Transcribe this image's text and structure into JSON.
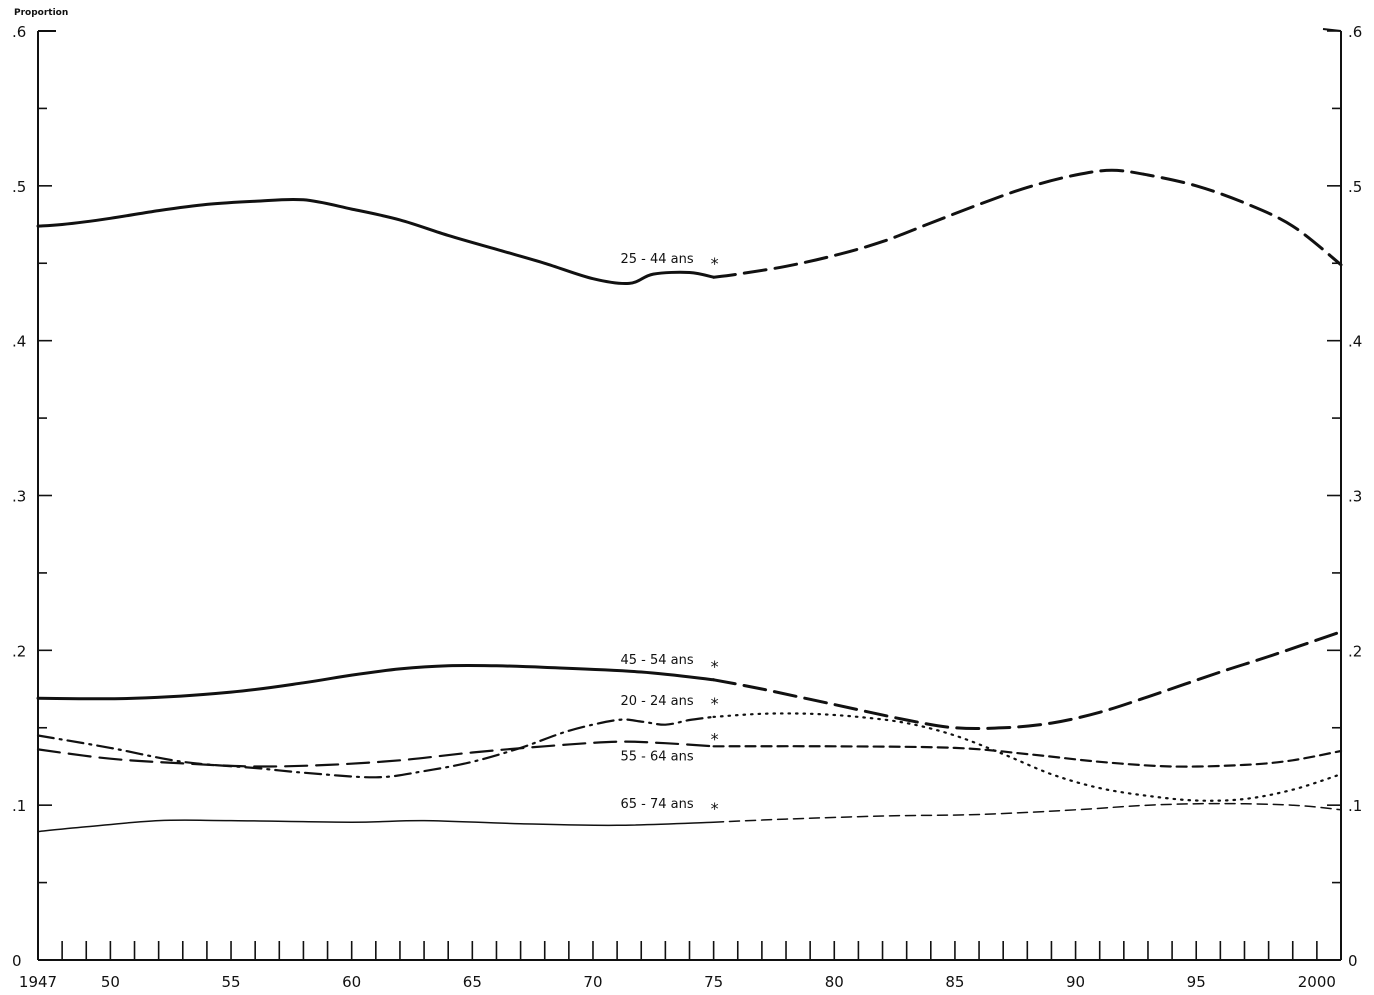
{
  "chart_data": {
    "type": "line",
    "ylabel": "Proportion",
    "xlim": [
      1947,
      2001
    ],
    "ylim": [
      0,
      0.6
    ],
    "x_ticks": [
      1947,
      1950,
      1955,
      1960,
      1965,
      1970,
      1975,
      1980,
      1985,
      1990,
      1995,
      2000
    ],
    "x_tick_labels": [
      "1947",
      "50",
      "55",
      "60",
      "65",
      "70",
      "75",
      "80",
      "85",
      "90",
      "95",
      "2000"
    ],
    "y_ticks": [
      0,
      0.1,
      0.2,
      0.3,
      0.4,
      0.5,
      0.6
    ],
    "y_tick_labels": [
      "0",
      ".1",
      ".2",
      ".3",
      ".4",
      ".5",
      ".6"
    ],
    "projection_start": 1975,
    "projection_marker": "*",
    "series": [
      {
        "name": "25 - 44 ans",
        "line_weight": "heavy",
        "projection_style": "long-dash",
        "observed": [
          [
            1947,
            0.474
          ],
          [
            1948,
            0.475
          ],
          [
            1950,
            0.479
          ],
          [
            1952,
            0.484
          ],
          [
            1954,
            0.488
          ],
          [
            1956,
            0.49
          ],
          [
            1958,
            0.491
          ],
          [
            1960,
            0.485
          ],
          [
            1962,
            0.478
          ],
          [
            1964,
            0.468
          ],
          [
            1966,
            0.459
          ],
          [
            1968,
            0.45
          ],
          [
            1970,
            0.44
          ],
          [
            1971.5,
            0.437
          ],
          [
            1972.5,
            0.443
          ],
          [
            1974,
            0.444
          ],
          [
            1975,
            0.441
          ]
        ],
        "projected": [
          [
            1975,
            0.441
          ],
          [
            1976,
            0.443
          ],
          [
            1978,
            0.448
          ],
          [
            1980,
            0.455
          ],
          [
            1982,
            0.464
          ],
          [
            1984,
            0.476
          ],
          [
            1986,
            0.488
          ],
          [
            1988,
            0.499
          ],
          [
            1990,
            0.507
          ],
          [
            1991.5,
            0.51
          ],
          [
            1993,
            0.507
          ],
          [
            1995,
            0.5
          ],
          [
            1997,
            0.489
          ],
          [
            1999,
            0.474
          ],
          [
            2001,
            0.449
          ]
        ]
      },
      {
        "name": "45 - 54 ans",
        "line_weight": "heavy",
        "projection_style": "long-dash",
        "observed": [
          [
            1947,
            0.169
          ],
          [
            1951,
            0.169
          ],
          [
            1955,
            0.173
          ],
          [
            1958,
            0.179
          ],
          [
            1960,
            0.184
          ],
          [
            1962,
            0.188
          ],
          [
            1964,
            0.19
          ],
          [
            1966,
            0.19
          ],
          [
            1968,
            0.189
          ],
          [
            1972,
            0.186
          ],
          [
            1975,
            0.181
          ]
        ],
        "projected": [
          [
            1975,
            0.181
          ],
          [
            1977,
            0.175
          ],
          [
            1980,
            0.165
          ],
          [
            1983,
            0.155
          ],
          [
            1985,
            0.15
          ],
          [
            1987,
            0.15
          ],
          [
            1989,
            0.153
          ],
          [
            1991,
            0.16
          ],
          [
            1993,
            0.17
          ],
          [
            1996,
            0.186
          ],
          [
            1998,
            0.196
          ],
          [
            2001,
            0.212
          ]
        ]
      },
      {
        "name": "20 - 24 ans",
        "line_weight": "medium",
        "observed_style": "dash-dot",
        "projection_style": "dotted",
        "observed": [
          [
            1947,
            0.145
          ],
          [
            1950,
            0.137
          ],
          [
            1953,
            0.128
          ],
          [
            1956,
            0.124
          ],
          [
            1958,
            0.121
          ],
          [
            1961,
            0.118
          ],
          [
            1963,
            0.122
          ],
          [
            1965,
            0.128
          ],
          [
            1967,
            0.137
          ],
          [
            1969,
            0.148
          ],
          [
            1971,
            0.155
          ],
          [
            1972,
            0.154
          ],
          [
            1973,
            0.152
          ],
          [
            1974,
            0.155
          ],
          [
            1975,
            0.157
          ]
        ],
        "projected": [
          [
            1975,
            0.157
          ],
          [
            1977,
            0.159
          ],
          [
            1979,
            0.159
          ],
          [
            1981,
            0.157
          ],
          [
            1983,
            0.153
          ],
          [
            1985,
            0.145
          ],
          [
            1987,
            0.133
          ],
          [
            1989,
            0.12
          ],
          [
            1991,
            0.111
          ],
          [
            1993,
            0.106
          ],
          [
            1995,
            0.103
          ],
          [
            1997,
            0.104
          ],
          [
            1999,
            0.11
          ],
          [
            2001,
            0.12
          ]
        ]
      },
      {
        "name": "55 - 64 ans",
        "line_weight": "medium",
        "observed_style": "long-dash",
        "projection_style": "short-dash",
        "observed": [
          [
            1947,
            0.136
          ],
          [
            1950,
            0.13
          ],
          [
            1953,
            0.127
          ],
          [
            1956,
            0.125
          ],
          [
            1959,
            0.126
          ],
          [
            1962,
            0.129
          ],
          [
            1965,
            0.134
          ],
          [
            1968,
            0.138
          ],
          [
            1971,
            0.141
          ],
          [
            1973,
            0.14
          ],
          [
            1975,
            0.138
          ]
        ],
        "projected": [
          [
            1975,
            0.138
          ],
          [
            1980,
            0.138
          ],
          [
            1985,
            0.137
          ],
          [
            1988,
            0.133
          ],
          [
            1991,
            0.128
          ],
          [
            1994,
            0.125
          ],
          [
            1997,
            0.126
          ],
          [
            1999,
            0.129
          ],
          [
            2001,
            0.135
          ]
        ]
      },
      {
        "name": "65 - 74 ans",
        "line_weight": "light",
        "projection_style": "short-dash",
        "observed": [
          [
            1947,
            0.083
          ],
          [
            1949,
            0.086
          ],
          [
            1952,
            0.09
          ],
          [
            1955,
            0.09
          ],
          [
            1960,
            0.089
          ],
          [
            1963,
            0.09
          ],
          [
            1967,
            0.088
          ],
          [
            1971,
            0.087
          ],
          [
            1975,
            0.089
          ]
        ],
        "projected": [
          [
            1975,
            0.089
          ],
          [
            1978,
            0.091
          ],
          [
            1982,
            0.093
          ],
          [
            1986,
            0.094
          ],
          [
            1990,
            0.097
          ],
          [
            1993,
            0.1
          ],
          [
            1996,
            0.101
          ],
          [
            1999,
            0.1
          ],
          [
            2001,
            0.097
          ]
        ]
      }
    ]
  }
}
